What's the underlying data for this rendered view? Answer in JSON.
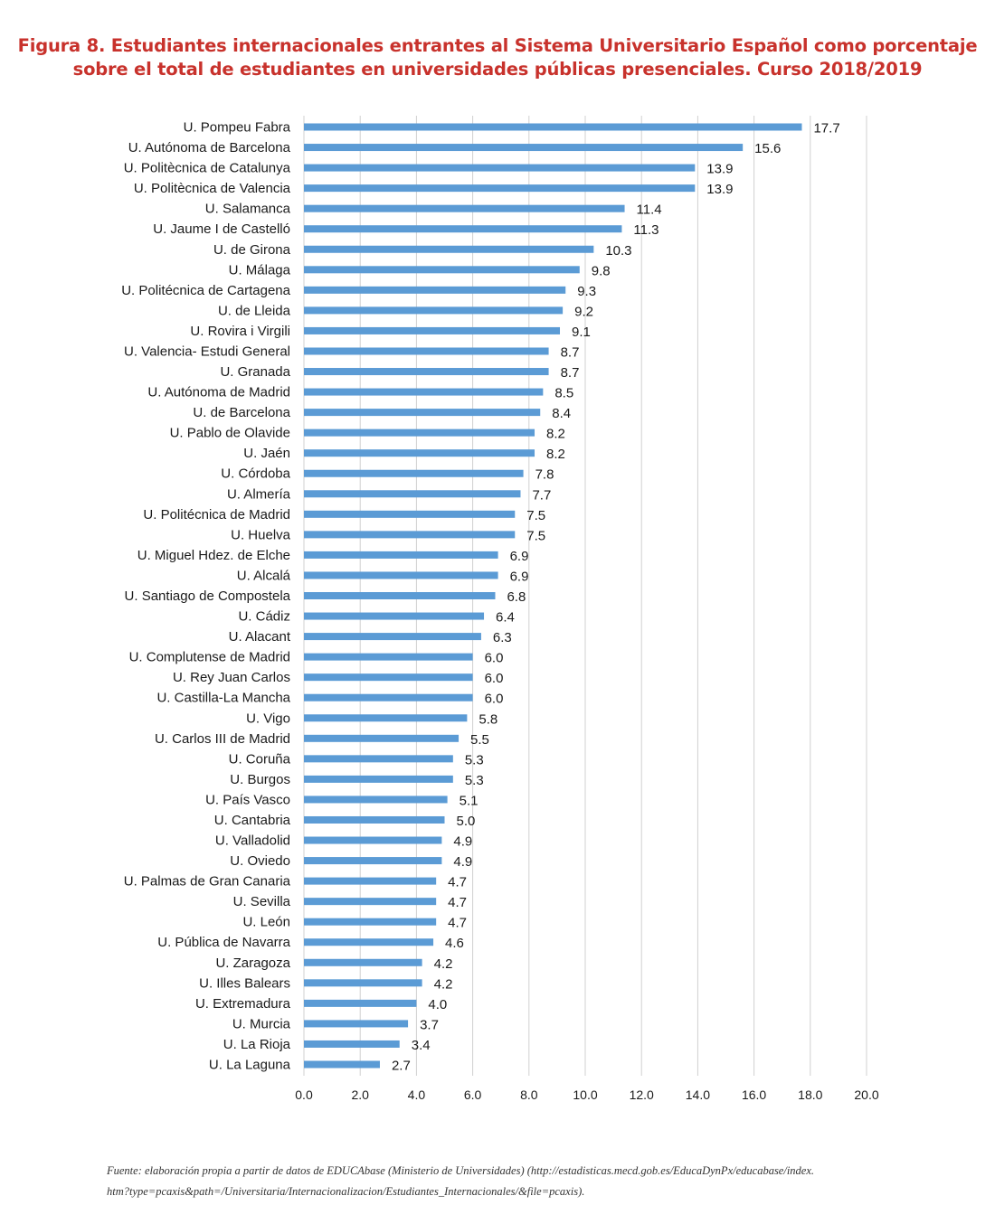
{
  "title": {
    "line1": "Figura 8. Estudiantes internacionales entrantes al Sistema Universitario Español como porcentaje",
    "line2": "sobre el total de estudiantes en universidades públicas presenciales. Curso 2018/2019"
  },
  "source_note": {
    "line1": "Fuente: elaboración propia a partir de datos de EDUCAbase (Ministerio de Universidades) (http://estadisticas.mecd.gob.es/EducaDynPx/educabase/index.",
    "line2": "htm?type=pcaxis&path=/Universitaria/Internacionalizacion/Estudiantes_Internacionales/&file=pcaxis)."
  },
  "colors": {
    "bar": "#5b9bd5",
    "title": "#c8322c",
    "grid": "#d0d0d0"
  },
  "chart_data": {
    "type": "bar",
    "orientation": "horizontal",
    "xlim": [
      0,
      20
    ],
    "x_ticks": [
      "0.0",
      "2.0",
      "4.0",
      "6.0",
      "8.0",
      "10.0",
      "12.0",
      "14.0",
      "16.0",
      "18.0",
      "20.0"
    ],
    "grid": true,
    "data_labels": true,
    "categories": [
      "U. Pompeu Fabra",
      "U. Autónoma de Barcelona",
      "U. Politècnica de Catalunya",
      "U. Politècnica de Valencia",
      "U. Salamanca",
      "U. Jaume I de Castelló",
      "U. de Girona",
      "U. Málaga",
      "U. Politécnica de Cartagena",
      "U. de Lleida",
      "U. Rovira i Virgili",
      "U. Valencia- Estudi General",
      "U. Granada",
      "U. Autónoma de Madrid",
      "U. de Barcelona",
      "U. Pablo de Olavide",
      "U. Jaén",
      "U. Córdoba",
      "U. Almería",
      "U. Politécnica de Madrid",
      "U. Huelva",
      "U. Miguel Hdez. de Elche",
      "U. Alcalá",
      "U. Santiago de Compostela",
      "U. Cádiz",
      "U. Alacant",
      "U. Complutense de Madrid",
      "U. Rey Juan Carlos",
      "U. Castilla-La Mancha",
      "U. Vigo",
      "U. Carlos III de Madrid",
      "U. Coruña",
      "U. Burgos",
      "U. País Vasco",
      "U. Cantabria",
      "U. Valladolid",
      "U. Oviedo",
      "U. Palmas de Gran Canaria",
      "U. Sevilla",
      "U. León",
      "U. Pública de Navarra",
      "U. Zaragoza",
      "U. Illes Balears",
      "U. Extremadura",
      "U. Murcia",
      "U. La Rioja",
      "U. La Laguna"
    ],
    "values": [
      17.7,
      15.6,
      13.9,
      13.9,
      11.4,
      11.3,
      10.3,
      9.8,
      9.3,
      9.2,
      9.1,
      8.7,
      8.7,
      8.5,
      8.4,
      8.2,
      8.2,
      7.8,
      7.7,
      7.5,
      7.5,
      6.9,
      6.9,
      6.8,
      6.4,
      6.3,
      6.0,
      6.0,
      6.0,
      5.8,
      5.5,
      5.3,
      5.3,
      5.1,
      5.0,
      4.9,
      4.9,
      4.7,
      4.7,
      4.7,
      4.6,
      4.2,
      4.2,
      4.0,
      3.7,
      3.4,
      2.7
    ],
    "value_labels": [
      "17.7",
      "15.6",
      "13.9",
      "13.9",
      "11.4",
      "11.3",
      "10.3",
      "9.8",
      "9.3",
      "9.2",
      "9.1",
      "8.7",
      "8.7",
      "8.5",
      "8.4",
      "8.2",
      "8.2",
      "7.8",
      "7.7",
      "7.5",
      "7.5",
      "6.9",
      "6.9",
      "6.8",
      "6.4",
      "6.3",
      "6.0",
      "6.0",
      "6.0",
      "5.8",
      "5.5",
      "5.3",
      "5.3",
      "5.1",
      "5.0",
      "4.9",
      "4.9",
      "4.7",
      "4.7",
      "4.7",
      "4.6",
      "4.2",
      "4.2",
      "4.0",
      "3.7",
      "3.4",
      "2.7"
    ]
  }
}
